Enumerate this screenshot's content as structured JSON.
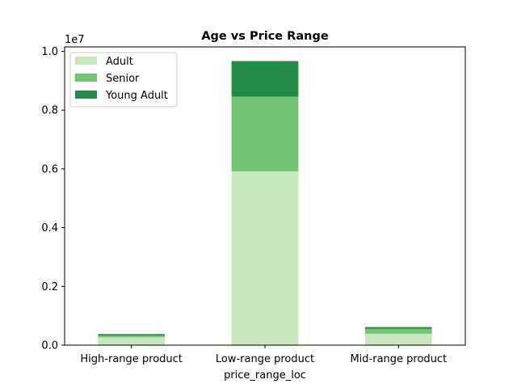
{
  "chart_data": {
    "type": "bar",
    "stacked": true,
    "title": "Age vs Price Range",
    "xlabel": "price_range_loc",
    "ylabel": "",
    "y_scale_label": "1e7",
    "ylim": [
      0,
      1.0
    ],
    "yticks": [
      0.0,
      0.2,
      0.4,
      0.6,
      0.8,
      1.0
    ],
    "ytick_labels": [
      "0.0",
      "0.2",
      "0.4",
      "0.6",
      "0.8",
      "1.0"
    ],
    "categories": [
      "High-range product",
      "Low-range product",
      "Mid-range product"
    ],
    "series": [
      {
        "name": "Adult",
        "color": "#c7e9c0",
        "values": [
          0.0265,
          0.591,
          0.039
        ]
      },
      {
        "name": "Senior",
        "color": "#74c476",
        "values": [
          0.0062,
          0.255,
          0.0165
        ]
      },
      {
        "name": "Young Adult",
        "color": "#238b45",
        "values": [
          0.005,
          0.121,
          0.006
        ]
      }
    ],
    "legend_position": "top-left",
    "grid": false
  }
}
